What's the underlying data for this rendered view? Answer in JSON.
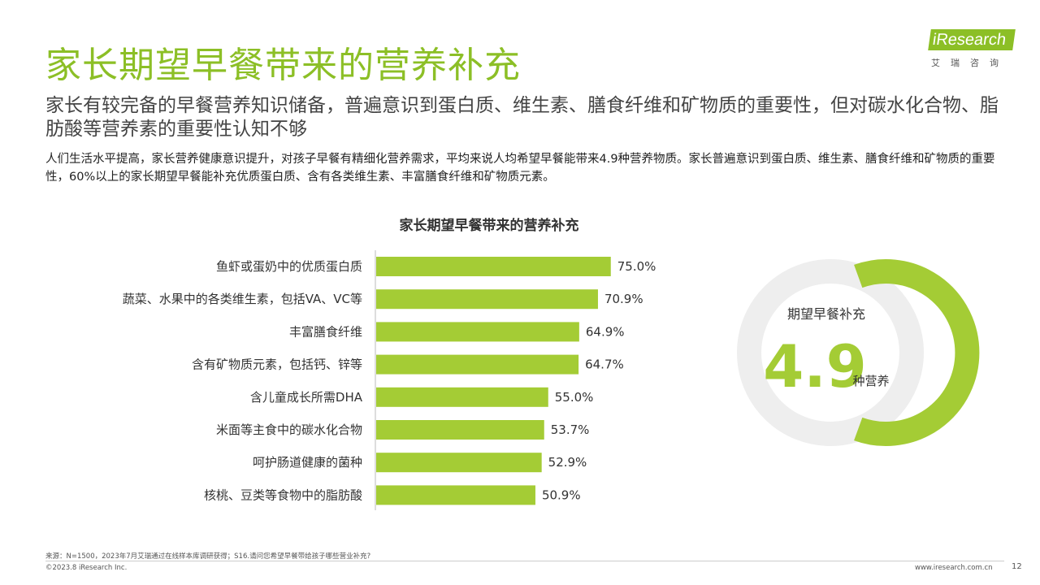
{
  "header": {
    "title": "家长期望早餐带来的营养补充",
    "subtitle": "家长有较完备的早餐营养知识储备，普遍意识到蛋白质、维生素、膳食纤维和矿物质的重要性，但对碳水化合物、脂肪酸等营养素的重要性认知不够",
    "description": "人们生活水平提高，家长营养健康意识提升，对孩子早餐有精细化营养需求，平均来说人均希望早餐能带来4.9种营养物质。家长普遍意识到蛋白质、维生素、膳食纤维和矿物质的重要性，60%以上的家长期望早餐能补充优质蛋白质、含有各类维生素、丰富膳食纤维和矿物质元素。"
  },
  "logo": {
    "name": "iResearch",
    "sub": "艾瑞咨询"
  },
  "chart_data": {
    "type": "bar",
    "orientation": "horizontal",
    "title": "家长期望早餐带来的营养补充",
    "categories": [
      "鱼虾或蛋奶中的优质蛋白质",
      "蔬菜、水果中的各类维生素，包括VA、VC等",
      "丰富膳食纤维",
      "含有矿物质元素，包括钙、锌等",
      "含儿童成长所需DHA",
      "米面等主食中的碳水化合物",
      "呵护肠道健康的菌种",
      "核桃、豆类等食物中的脂肪酸"
    ],
    "values": [
      75.0,
      70.9,
      64.9,
      64.7,
      55.0,
      53.7,
      52.9,
      50.9
    ],
    "value_labels": [
      "75.0%",
      "70.9%",
      "64.9%",
      "64.7%",
      "55.0%",
      "53.7%",
      "52.9%",
      "50.9%"
    ],
    "xlim": [
      0,
      100
    ],
    "bar_color": "#a4cc35",
    "grid": false
  },
  "kpi": {
    "label": "期望早餐补充",
    "value": 4.9,
    "value_text": "4.9",
    "unit": "种营养",
    "ring_color": "#a4cc35"
  },
  "footer": {
    "source": "来源：N=1500，2023年7月艾瑞通过在线样本库调研获得；S16.请问您希望早餐带给孩子哪些营业补充?",
    "copyright": "©2023.8 iResearch Inc.",
    "url": "www.iresearch.com.cn",
    "page": "12"
  }
}
